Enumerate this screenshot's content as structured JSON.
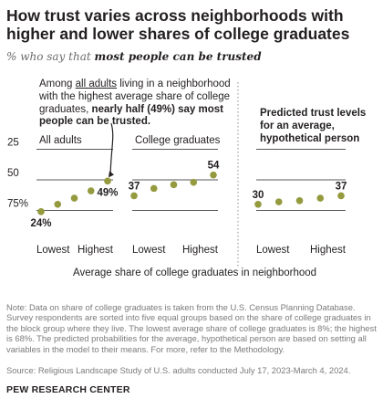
{
  "header": {
    "title": "How trust varies across neighborhoods with higher and lower shares of college graduates",
    "subtitle_prefix": "% who say that ",
    "subtitle_emphasis": "most people can be trusted"
  },
  "annotation": {
    "part1": "Among ",
    "underlined": "all adults",
    "part2": " living in a neighborhood with the highest average share of college graduates, ",
    "bold": "nearly half (49%) say most people can be trusted."
  },
  "predicted_label": "Predicted trust levels for an average, hypothetical person",
  "colors": {
    "point": "#949a3d",
    "gridline": "#231f20",
    "divider": "#8c8c8c",
    "arrow": "#231f20"
  },
  "chart_data": {
    "type": "scatter",
    "xlabel": "Average share of college graduates in neighborhood",
    "categories": [
      "1",
      "2",
      "3",
      "4",
      "5"
    ],
    "x_tick_labels": [
      "Lowest",
      "Highest"
    ],
    "y_tick_labels": [
      "75%",
      "50",
      "25"
    ],
    "ylim": [
      15,
      80
    ],
    "gridlines": [
      25,
      50,
      75
    ],
    "panels": [
      {
        "title": "All adults",
        "values": [
          24,
          30,
          35,
          41,
          49
        ],
        "labels": [
          "24%",
          "",
          "",
          "",
          "49%"
        ],
        "label_positions": [
          "below",
          "",
          "",
          "",
          "below"
        ]
      },
      {
        "title": "College graduates",
        "values": [
          37,
          43,
          46,
          48,
          54
        ],
        "labels": [
          "37",
          "",
          "",
          "",
          "54"
        ],
        "label_positions": [
          "above",
          "",
          "",
          "",
          "above"
        ]
      },
      {
        "title": "",
        "values": [
          30,
          32,
          33,
          35,
          37
        ],
        "labels": [
          "30",
          "",
          "",
          "",
          "37"
        ],
        "label_positions": [
          "above",
          "",
          "",
          "",
          "above"
        ]
      }
    ]
  },
  "footer": {
    "note": "Note: Data on share of college graduates is taken from the U.S. Census Planning Database. Survey respondents are sorted into five equal groups based on the share of college graduates in the block group where they live. The lowest average share of college graduates is 8%; the highest is 68%. The predicted probabilities for the average, hypothetical person are based on setting all variables in the model to their means. For more, refer to the Methodology.",
    "source": "Source: Religious Landscape Study of U.S. adults conducted July 17, 2023-March 4, 2024.",
    "brand": "PEW RESEARCH CENTER"
  }
}
